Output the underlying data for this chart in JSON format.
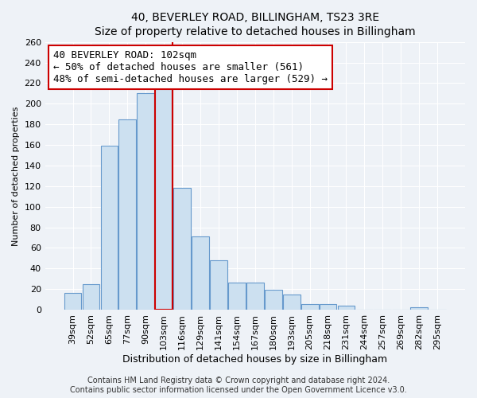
{
  "title": "40, BEVERLEY ROAD, BILLINGHAM, TS23 3RE",
  "subtitle": "Size of property relative to detached houses in Billingham",
  "xlabel": "Distribution of detached houses by size in Billingham",
  "ylabel": "Number of detached properties",
  "categories": [
    "39sqm",
    "52sqm",
    "65sqm",
    "77sqm",
    "90sqm",
    "103sqm",
    "116sqm",
    "129sqm",
    "141sqm",
    "154sqm",
    "167sqm",
    "180sqm",
    "193sqm",
    "205sqm",
    "218sqm",
    "231sqm",
    "244sqm",
    "257sqm",
    "269sqm",
    "282sqm",
    "295sqm"
  ],
  "values": [
    16,
    25,
    159,
    185,
    210,
    215,
    118,
    71,
    48,
    26,
    26,
    19,
    15,
    5,
    5,
    4,
    0,
    0,
    0,
    2,
    0
  ],
  "bar_color": "#cce0f0",
  "bar_edge_color": "#6699cc",
  "highlight_index": 5,
  "highlight_color": "#cce0f0",
  "highlight_edge_color": "#cc0000",
  "vline_color": "#cc0000",
  "annotation_text": "40 BEVERLEY ROAD: 102sqm\n← 50% of detached houses are smaller (561)\n48% of semi-detached houses are larger (529) →",
  "annotation_box_color": "white",
  "annotation_box_edge_color": "#cc0000",
  "ylim": [
    0,
    260
  ],
  "yticks": [
    0,
    20,
    40,
    60,
    80,
    100,
    120,
    140,
    160,
    180,
    200,
    220,
    240,
    260
  ],
  "footer1": "Contains HM Land Registry data © Crown copyright and database right 2024.",
  "footer2": "Contains public sector information licensed under the Open Government Licence v3.0.",
  "title_fontsize": 10,
  "xlabel_fontsize": 9,
  "ylabel_fontsize": 8,
  "tick_fontsize": 8,
  "footer_fontsize": 7,
  "annotation_fontsize": 9,
  "background_color": "#eef2f7"
}
